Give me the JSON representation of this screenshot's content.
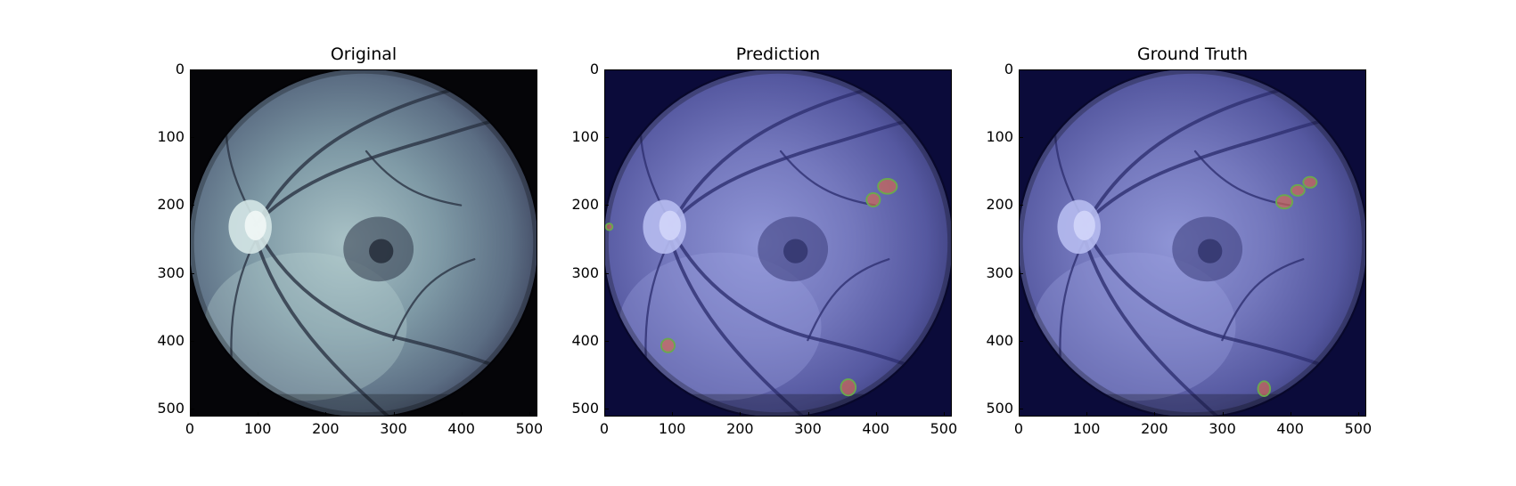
{
  "panels": [
    {
      "title": "Original",
      "variant": "original",
      "x_ticks": [
        "0",
        "100",
        "200",
        "300",
        "400",
        "500"
      ],
      "y_ticks": [
        "0",
        "100",
        "200",
        "300",
        "400",
        "500"
      ],
      "lesions": []
    },
    {
      "title": "Prediction",
      "variant": "overlay",
      "x_ticks": [
        "0",
        "100",
        "200",
        "300",
        "400",
        "500"
      ],
      "y_ticks": [
        "0",
        "100",
        "200",
        "300",
        "400",
        "500"
      ],
      "lesions": [
        {
          "x": 418,
          "y": 172,
          "rx": 14,
          "ry": 11
        },
        {
          "x": 397,
          "y": 192,
          "rx": 10,
          "ry": 10
        },
        {
          "x": 93,
          "y": 408,
          "rx": 10,
          "ry": 10
        },
        {
          "x": 360,
          "y": 470,
          "rx": 11,
          "ry": 12
        },
        {
          "x": 6,
          "y": 232,
          "rx": 5,
          "ry": 5
        }
      ]
    },
    {
      "title": "Ground Truth",
      "variant": "overlay",
      "x_ticks": [
        "0",
        "100",
        "200",
        "300",
        "400",
        "500"
      ],
      "y_ticks": [
        "0",
        "100",
        "200",
        "300",
        "400",
        "500"
      ],
      "lesions": [
        {
          "x": 430,
          "y": 166,
          "rx": 10,
          "ry": 8
        },
        {
          "x": 412,
          "y": 178,
          "rx": 10,
          "ry": 8
        },
        {
          "x": 392,
          "y": 195,
          "rx": 12,
          "ry": 10
        },
        {
          "x": 362,
          "y": 472,
          "rx": 9,
          "ry": 11
        }
      ]
    }
  ],
  "colors": {
    "fundus_bg": "#050508",
    "overlay_bg": "#0b0b3a",
    "lesion_fill": "#d9684f",
    "lesion_edge": "#6aa84f"
  }
}
